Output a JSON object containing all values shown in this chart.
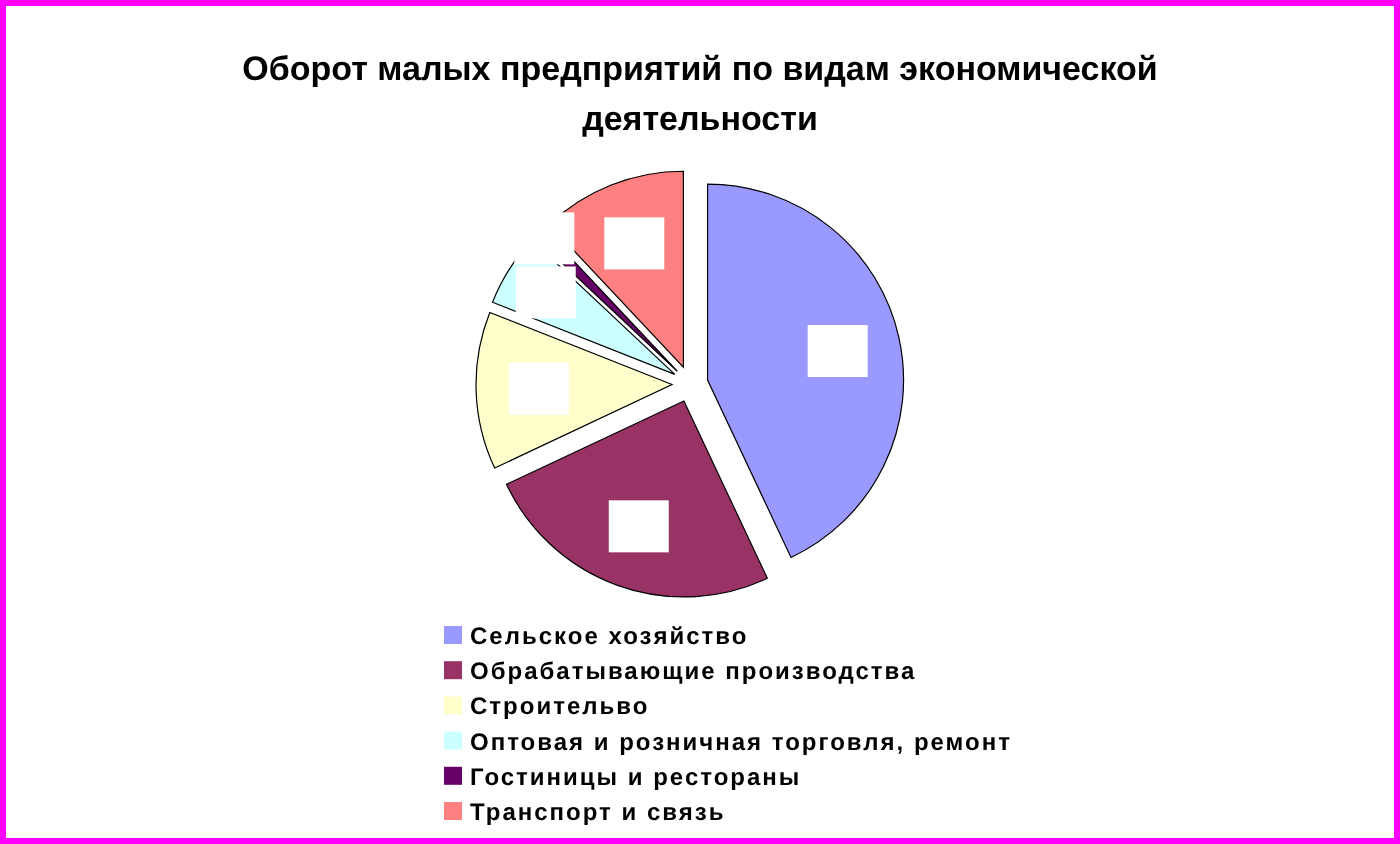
{
  "chart_data": {
    "type": "pie",
    "title": "Оборот малых предприятий по видам экономической деятельности",
    "categories": [
      "Сельское хозяйство",
      "Обрабатывающие производства",
      "Строительво",
      "Оптовая и розничная торговля, ремонт",
      "Гостиницы и рестораны",
      "Транспорт и связь"
    ],
    "values": [
      43,
      25,
      13,
      6,
      1,
      12
    ],
    "colors": [
      "#9999ff",
      "#993366",
      "#ffffcc",
      "#ccffff",
      "#660066",
      "#ff8080"
    ],
    "legend": "bottom"
  }
}
